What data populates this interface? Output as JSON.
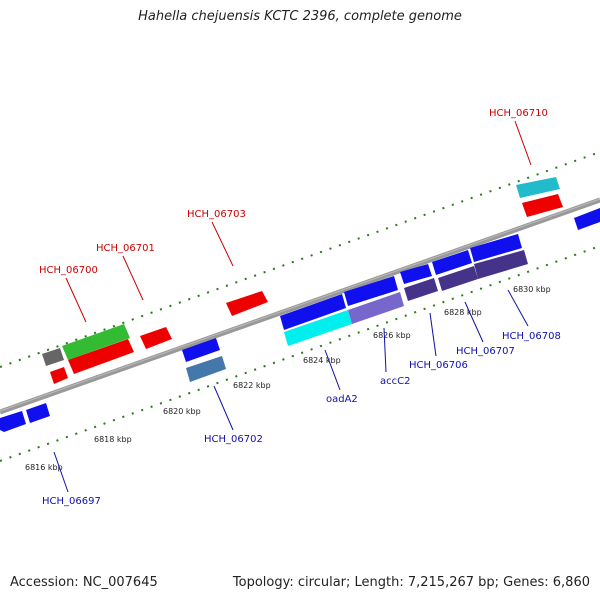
{
  "title": "Hahella chejuensis KCTC 2396, complete genome",
  "footer": {
    "accession": "Accession: NC_007645",
    "summary": "Topology: circular; Length: 7,215,267 bp; Genes: 6,860"
  },
  "colors": {
    "backbone": "#888888",
    "ticks": "#2a7a1a",
    "label_top": "#cc0000",
    "label_bottom": "#1010aa"
  },
  "scale_labels": [
    "6816 kbp",
    "6818 kbp",
    "6820 kbp",
    "6822 kbp",
    "6824 kbp",
    "6826 kbp",
    "6828 kbp",
    "6830 kbp"
  ],
  "gene_labels_top": [
    "HCH_06700",
    "HCH_06701",
    "HCH_06703",
    "HCH_06710"
  ],
  "gene_labels_bottom": [
    "HCH_06697",
    "HCH_06702",
    "oadA2",
    "accC2",
    "HCH_06706",
    "HCH_06707",
    "HCH_06708"
  ]
}
